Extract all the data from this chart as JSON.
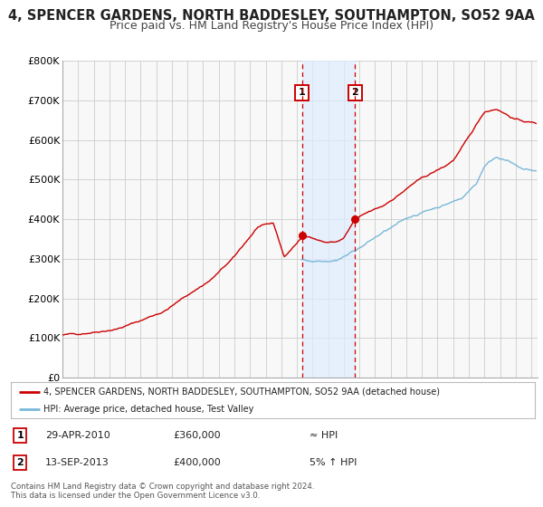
{
  "title": "4, SPENCER GARDENS, NORTH BADDESLEY, SOUTHAMPTON, SO52 9AA",
  "subtitle": "Price paid vs. HM Land Registry's House Price Index (HPI)",
  "ylim": [
    0,
    800000
  ],
  "yticks": [
    0,
    100000,
    200000,
    300000,
    400000,
    500000,
    600000,
    700000,
    800000
  ],
  "ytick_labels": [
    "£0",
    "£100K",
    "£200K",
    "£300K",
    "£400K",
    "£500K",
    "£600K",
    "£700K",
    "£800K"
  ],
  "hpi_color": "#7ab8d9",
  "price_color": "#cc0000",
  "sale1_date": 2010.33,
  "sale1_price": 360000,
  "sale2_date": 2013.71,
  "sale2_price": 400000,
  "shade_color": "#ddeeff",
  "vline_color": "#cc0000",
  "grid_color": "#cccccc",
  "bg_color": "#f8f8f8",
  "label_box_color": "#cc0000",
  "legend_line1": "4, SPENCER GARDENS, NORTH BADDESLEY, SOUTHAMPTON, SO52 9AA (detached house)",
  "legend_line2": "HPI: Average price, detached house, Test Valley",
  "table_row1_num": "1",
  "table_row1_date": "29-APR-2010",
  "table_row1_price": "£360,000",
  "table_row1_hpi": "≈ HPI",
  "table_row2_num": "2",
  "table_row2_date": "13-SEP-2013",
  "table_row2_price": "£400,000",
  "table_row2_hpi": "5% ↑ HPI",
  "footnote_line1": "Contains HM Land Registry data © Crown copyright and database right 2024.",
  "footnote_line2": "This data is licensed under the Open Government Licence v3.0.",
  "xlim_start": 1995,
  "xlim_end": 2025.4
}
